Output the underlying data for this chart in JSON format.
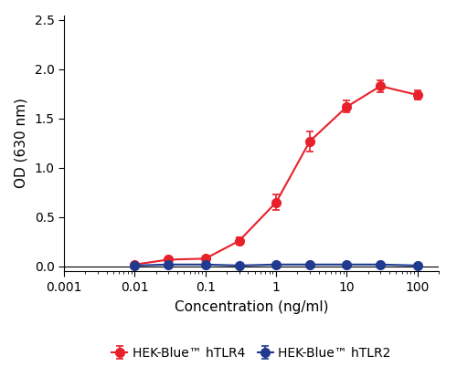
{
  "tlr4_x": [
    0.01,
    0.03,
    0.1,
    0.3,
    1,
    3,
    10,
    30,
    100
  ],
  "tlr4_y": [
    0.02,
    0.07,
    0.08,
    0.26,
    0.65,
    1.27,
    1.62,
    1.83,
    1.74
  ],
  "tlr4_yerr": [
    0.01,
    0.02,
    0.02,
    0.04,
    0.08,
    0.1,
    0.06,
    0.06,
    0.05
  ],
  "tlr2_x": [
    0.01,
    0.03,
    0.1,
    0.3,
    1,
    3,
    10,
    30,
    100
  ],
  "tlr2_y": [
    0.01,
    0.02,
    0.02,
    0.01,
    0.02,
    0.02,
    0.02,
    0.02,
    0.01
  ],
  "tlr2_yerr": [
    0.005,
    0.005,
    0.005,
    0.005,
    0.005,
    0.005,
    0.005,
    0.005,
    0.005
  ],
  "tlr4_color": "#e8202a",
  "tlr2_color": "#1f3a8f",
  "tlr4_label": "HEK-Blue™ hTLR4",
  "tlr2_label": "HEK-Blue™ hTLR2",
  "xlabel": "Concentration (ng/ml)",
  "ylabel": "OD (630 nm)",
  "ylim": [
    -0.05,
    2.55
  ],
  "yticks": [
    0.0,
    0.5,
    1.0,
    1.5,
    2.0,
    2.5
  ],
  "xlim": [
    0.001,
    200
  ],
  "xticks": [
    0.001,
    0.01,
    0.1,
    1,
    10,
    100
  ],
  "xticklabels": [
    "0.001",
    "0.01",
    "0.1",
    "1",
    "10",
    "100"
  ],
  "marker_size": 7,
  "line_width": 1.5,
  "capsize": 3,
  "fig_width": 5.0,
  "fig_height": 4.13
}
